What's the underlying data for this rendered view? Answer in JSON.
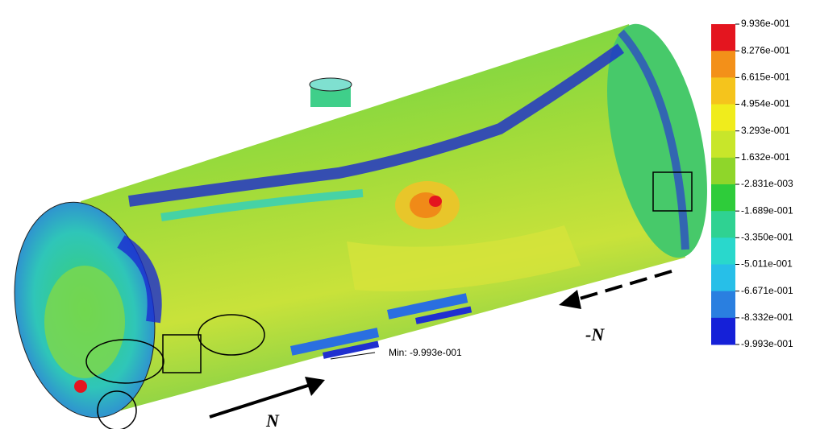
{
  "legend": {
    "labels": [
      "9.936e-001",
      "8.276e-001",
      "6.615e-001",
      "4.954e-001",
      "3.293e-001",
      "1.632e-001",
      "-2.831e-003",
      "-1.689e-001",
      "-3.350e-001",
      "-5.011e-001",
      "-6.671e-001",
      "-8.332e-001",
      "-9.993e-001"
    ],
    "colors": [
      "#e4151f",
      "#f39019",
      "#f5c41c",
      "#f0ec1c",
      "#c8e62a",
      "#8fd62a",
      "#2ecc3a",
      "#2fd292",
      "#29d8cc",
      "#27bfe8",
      "#2a7fe0",
      "#1520d8"
    ]
  },
  "annotations": {
    "min_label": "Min: -9.993e-001",
    "force": "N",
    "reverse_force": "-N"
  }
}
